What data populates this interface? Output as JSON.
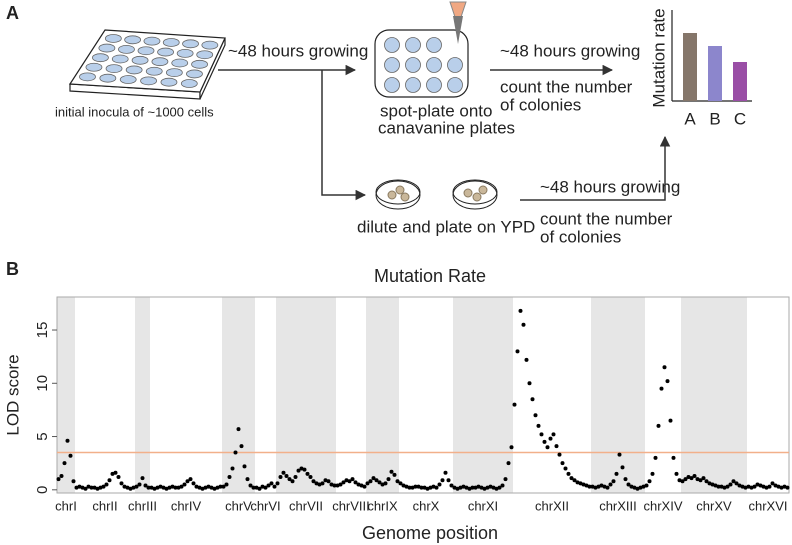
{
  "panel_labels": [
    "A",
    "B"
  ],
  "diagram": {
    "inoculum_label": "initial inocula of ~1000 cells",
    "step1_label": "~48 hours growing",
    "spot_plate_label": [
      "spot-plate onto",
      "canavanine plates"
    ],
    "step2_label": "~48 hours growing",
    "step2_count": [
      "count the number",
      "of colonies"
    ],
    "result_axis_label": "Mutation rate",
    "result_categories": [
      "A",
      "B",
      "C"
    ],
    "ypd_label": "dilute and plate on YPD",
    "step3_label": "~48 hours growing",
    "step3_count": [
      "count the number",
      "of colonies"
    ]
  },
  "chart_data": {
    "type": "manhattan",
    "title": "Mutation Rate",
    "x_label": "Genome position",
    "y_label": "LOD score",
    "categories": [
      "chrI",
      "chrII",
      "chrIII",
      "chrIV",
      "chrV",
      "chrVI",
      "chrVII",
      "chrVIII",
      "chrIX",
      "chrX",
      "chrXI",
      "chrXII",
      "chrXIII",
      "chrXIV",
      "chrXV",
      "chrXVI"
    ],
    "values": [
      [
        1.0,
        1.3,
        2.5,
        4.6,
        3.2,
        0.8
      ],
      [
        0.2,
        0.3,
        0.2,
        0.1,
        0.3,
        0.2,
        0.2,
        0.1,
        0.2,
        0.3,
        0.5,
        0.9,
        1.5,
        1.6,
        1.2,
        0.6,
        0.3,
        0.2,
        0.1,
        0.2
      ],
      [
        0.3,
        0.5,
        1.1,
        0.4,
        0.2
      ],
      [
        0.2,
        0.1,
        0.2,
        0.3,
        0.2,
        0.1,
        0.2,
        0.3,
        0.2,
        0.2,
        0.3,
        0.5,
        0.8,
        1.0,
        0.6,
        0.3,
        0.2,
        0.1,
        0.2,
        0.3,
        0.2,
        0.1,
        0.2,
        0.3
      ],
      [
        0.3,
        0.5,
        1.2,
        2.0,
        3.5,
        5.7,
        4.1,
        2.2,
        1.0,
        0.4,
        0.2
      ],
      [
        0.2,
        0.1,
        0.3,
        0.2,
        0.4,
        0.6,
        0.3
      ],
      [
        0.6,
        1.2,
        1.6,
        1.3,
        1.0,
        0.8,
        1.2,
        1.8,
        2.0,
        1.9,
        1.5,
        1.2,
        0.8,
        0.6,
        0.5,
        0.6,
        0.9,
        0.8,
        0.5,
        0.4
      ],
      [
        0.4,
        0.5,
        0.7,
        0.9,
        0.8,
        1.0,
        0.7,
        0.5,
        0.4,
        0.3
      ],
      [
        0.6,
        0.8,
        1.1,
        0.9,
        0.7,
        0.5,
        0.6,
        1.0,
        1.7,
        1.4,
        0.8
      ],
      [
        0.6,
        0.4,
        0.3,
        0.2,
        0.2,
        0.3,
        0.3,
        0.2,
        0.2,
        0.1,
        0.2,
        0.3,
        0.2,
        0.5,
        0.9,
        1.6,
        0.9,
        0.4
      ],
      [
        0.2,
        0.1,
        0.2,
        0.3,
        0.2,
        0.1,
        0.2,
        0.2,
        0.3,
        0.2,
        0.1,
        0.2,
        0.3,
        0.2,
        0.1,
        0.2,
        0.4,
        1.0,
        2.5,
        4.0
      ],
      [
        8.0,
        13.0,
        16.8,
        15.5,
        12.2,
        10.0,
        8.5,
        7.0,
        6.0,
        5.2,
        4.5,
        4.0,
        4.8,
        5.2,
        4.1,
        3.3,
        2.5,
        2.0,
        1.5,
        1.1,
        0.9,
        0.7,
        0.6,
        0.5,
        0.4,
        0.3
      ],
      [
        0.3,
        0.2,
        0.3,
        0.4,
        0.3,
        0.2,
        0.5,
        0.8,
        1.5,
        3.3,
        2.1,
        1.0,
        0.5,
        0.3,
        0.2,
        0.1,
        0.2,
        0.3
      ],
      [
        0.4,
        0.8,
        1.5,
        3.0,
        6.0,
        9.5,
        11.5,
        10.2,
        6.5,
        3.0,
        1.5,
        0.9
      ],
      [
        0.8,
        1.0,
        1.2,
        1.1,
        1.3,
        1.0,
        0.9,
        1.1,
        0.8,
        0.6,
        0.5,
        0.4,
        0.3,
        0.3,
        0.2,
        0.3,
        0.5,
        0.8,
        0.6,
        0.4,
        0.3,
        0.2
      ],
      [
        0.3,
        0.2,
        0.3,
        0.5,
        0.4,
        0.3,
        0.2,
        0.3,
        0.6,
        0.4,
        0.3,
        0.2,
        0.3,
        0.2
      ]
    ],
    "color": "#000000",
    "ylim": [
      -0.3,
      18.1
    ],
    "yticks": [
      0,
      5,
      10,
      15
    ],
    "threshold": 3.5,
    "threshold_color": "#f2b08a",
    "alternate_shading": true,
    "shade_color": "#e6e6e6"
  }
}
